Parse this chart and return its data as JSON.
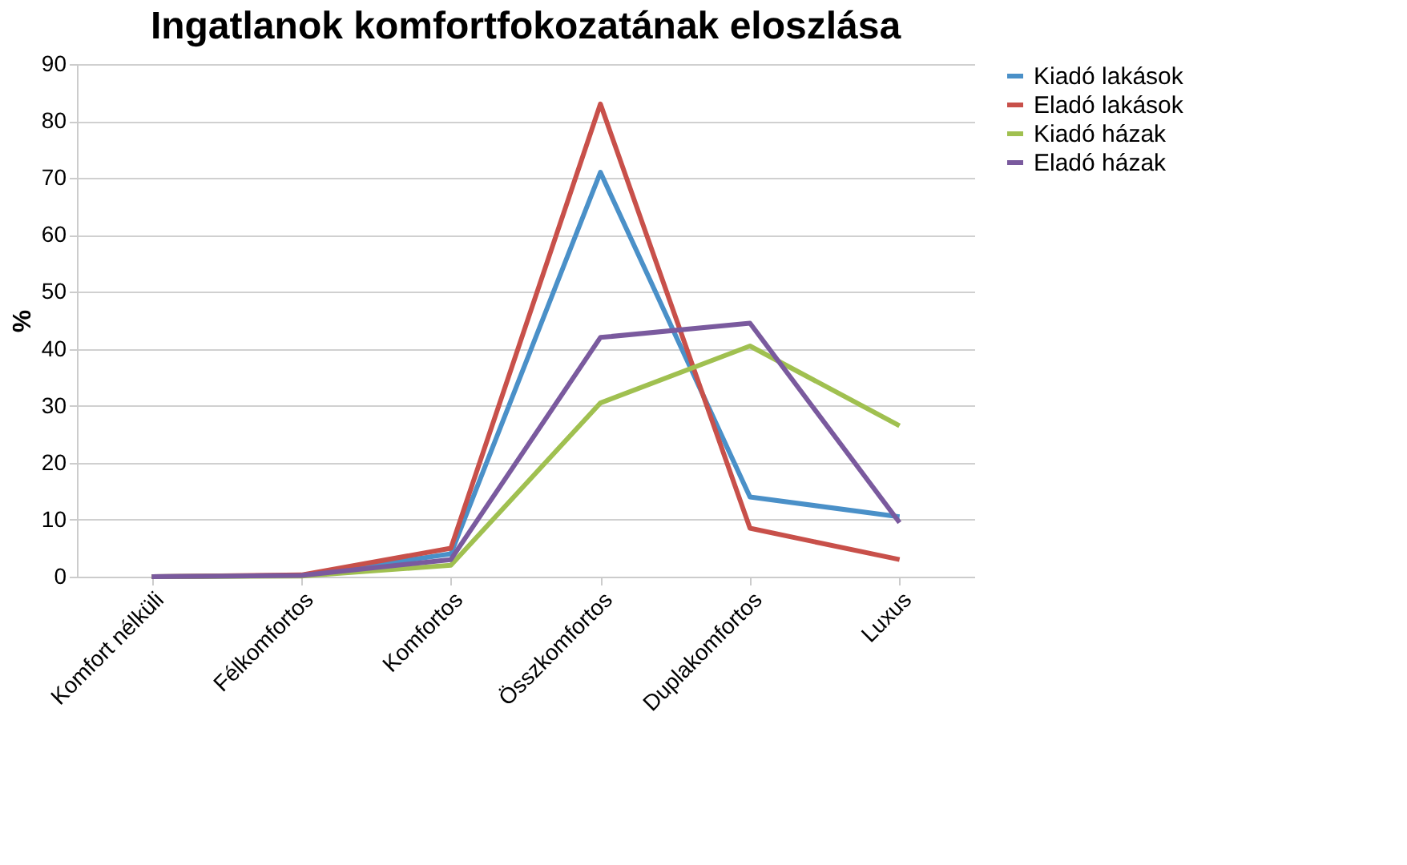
{
  "chart_data": {
    "type": "line",
    "title": "Ingatlanok komfortfokozatának eloszlása",
    "ylabel": "%",
    "categories": [
      "Komfort nélküli",
      "Félkomfortos",
      "Komfortos",
      "Összkomfortos",
      "Duplakomfortos",
      "Luxus"
    ],
    "series": [
      {
        "name": "Kiadó lakások",
        "color": "#4a90c8",
        "values": [
          0,
          0.2,
          4,
          71,
          14,
          10.5
        ]
      },
      {
        "name": "Eladó lakások",
        "color": "#c8504a",
        "values": [
          0,
          0.3,
          5,
          83,
          8.5,
          3
        ]
      },
      {
        "name": "Kiadó házak",
        "color": "#a0c050",
        "values": [
          0,
          0.1,
          2,
          30.5,
          40.5,
          26.5
        ]
      },
      {
        "name": "Eladó házak",
        "color": "#7a5a9e",
        "values": [
          0,
          0.2,
          3,
          42,
          44.5,
          9.5
        ]
      }
    ],
    "ylim": [
      0,
      90
    ],
    "yticks": [
      0,
      10,
      20,
      30,
      40,
      50,
      60,
      70,
      80,
      90
    ],
    "grid": "y",
    "legend": "right",
    "marker": "none",
    "line_style": "solid"
  }
}
